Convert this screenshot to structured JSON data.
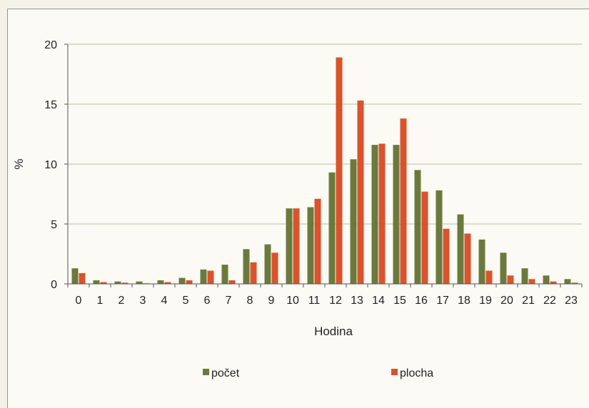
{
  "chart_data": {
    "type": "bar",
    "xlabel": "Hodina",
    "ylabel": "%",
    "ylim": [
      0,
      20
    ],
    "yticks": [
      0,
      5,
      10,
      15,
      20
    ],
    "grid": "horizontal",
    "legend_position": "bottom",
    "categories": [
      "0",
      "1",
      "2",
      "3",
      "4",
      "5",
      "6",
      "7",
      "8",
      "9",
      "10",
      "11",
      "12",
      "13",
      "14",
      "15",
      "16",
      "17",
      "18",
      "19",
      "20",
      "21",
      "22",
      "23"
    ],
    "series": [
      {
        "name": "počet",
        "color": "#6b7a3c",
        "values": [
          1.3,
          0.3,
          0.2,
          0.2,
          0.3,
          0.5,
          1.2,
          1.6,
          2.9,
          3.3,
          6.3,
          6.4,
          9.3,
          10.4,
          11.6,
          11.6,
          9.5,
          7.8,
          5.8,
          3.7,
          2.6,
          1.3,
          0.7,
          0.4
        ]
      },
      {
        "name": "plocha",
        "color": "#d9532c",
        "values": [
          0.9,
          0.15,
          0.1,
          0.05,
          0.15,
          0.3,
          1.1,
          0.3,
          1.8,
          2.6,
          6.3,
          7.1,
          18.9,
          15.3,
          11.7,
          13.8,
          7.7,
          4.6,
          4.2,
          1.1,
          0.7,
          0.4,
          0.2,
          0.1
        ]
      }
    ]
  }
}
